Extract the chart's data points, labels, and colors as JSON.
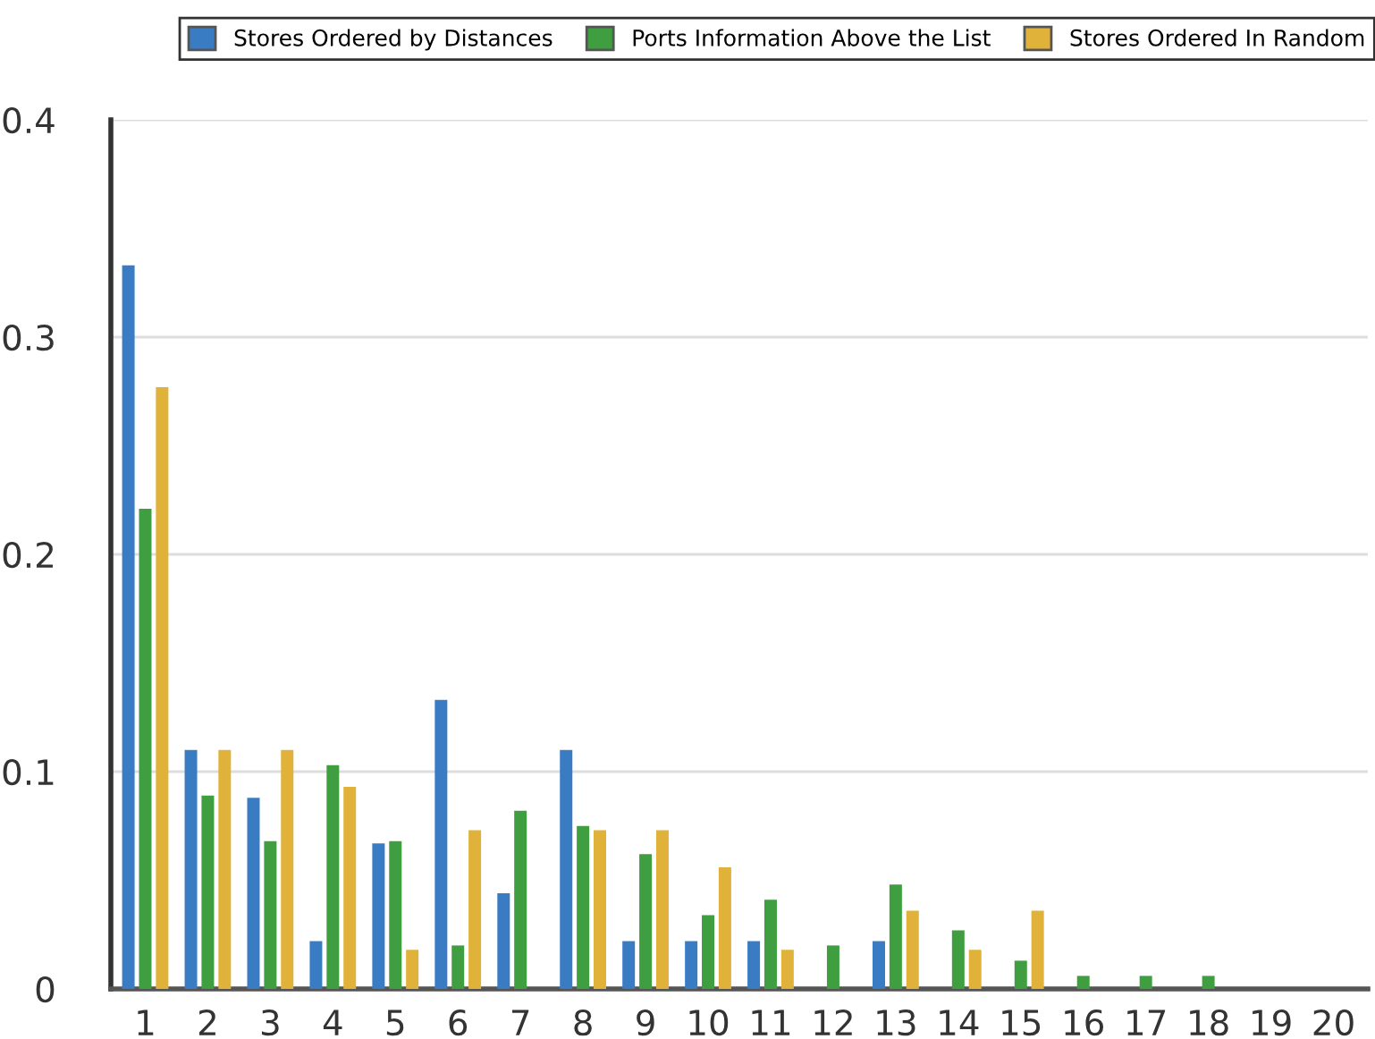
{
  "chart_data": {
    "type": "bar",
    "categories": [
      "1",
      "2",
      "3",
      "4",
      "5",
      "6",
      "7",
      "8",
      "9",
      "10",
      "11",
      "12",
      "13",
      "14",
      "15",
      "16",
      "17",
      "18",
      "19",
      "20"
    ],
    "series": [
      {
        "name": "Stores Ordered by Distances",
        "color": "#3a7cc4",
        "values": [
          0.333,
          0.11,
          0.088,
          0.022,
          0.067,
          0.133,
          0.044,
          0.11,
          0.022,
          0.022,
          0.022,
          0,
          0.022,
          0,
          0,
          0,
          0,
          0,
          0,
          0
        ]
      },
      {
        "name": "Ports Information Above the List",
        "color": "#3f9e3f",
        "values": [
          0.221,
          0.089,
          0.068,
          0.103,
          0.068,
          0.02,
          0.082,
          0.075,
          0.062,
          0.034,
          0.041,
          0.02,
          0.048,
          0.027,
          0.013,
          0.006,
          0.006,
          0.006,
          0,
          0
        ]
      },
      {
        "name": "Stores Ordered In Random",
        "color": "#e0b23a",
        "values": [
          0.277,
          0.11,
          0.11,
          0.093,
          0.018,
          0.073,
          0,
          0.073,
          0.073,
          0.056,
          0.018,
          0,
          0.036,
          0.018,
          0.036,
          0,
          0,
          0,
          0,
          0
        ]
      }
    ],
    "ylim": [
      0,
      0.4
    ],
    "yticks": [
      {
        "value": 0,
        "label": "0"
      },
      0.1,
      0.2,
      0.3,
      0.4
    ],
    "grid": "y",
    "legend": "top"
  }
}
